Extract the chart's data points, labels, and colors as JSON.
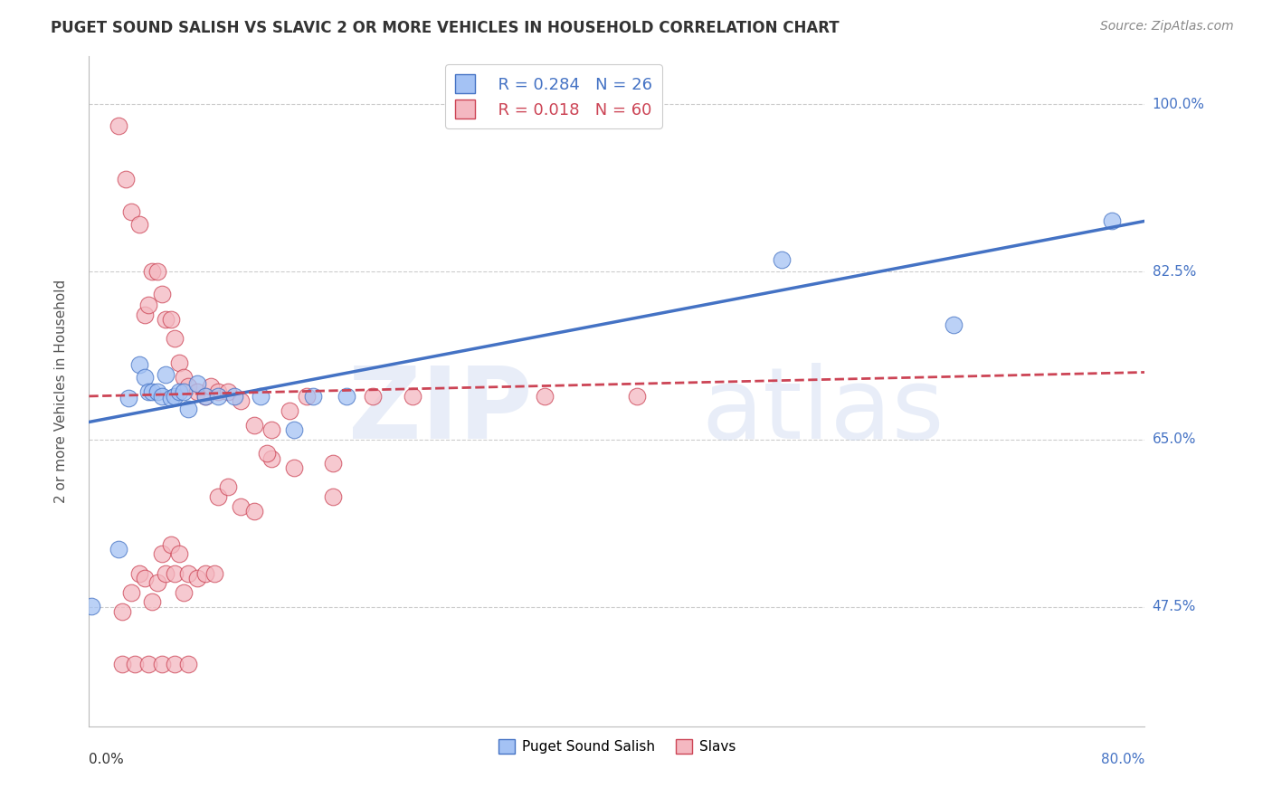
{
  "title": "PUGET SOUND SALISH VS SLAVIC 2 OR MORE VEHICLES IN HOUSEHOLD CORRELATION CHART",
  "source": "Source: ZipAtlas.com",
  "ylabel": "2 or more Vehicles in Household",
  "ytick_labels": [
    "47.5%",
    "65.0%",
    "82.5%",
    "100.0%"
  ],
  "ytick_values": [
    0.475,
    0.65,
    0.825,
    1.0
  ],
  "xlim": [
    0.0,
    0.8
  ],
  "ylim": [
    0.35,
    1.05
  ],
  "legend1_r": "R = 0.284",
  "legend1_n": "N = 26",
  "legend2_r": "R = 0.018",
  "legend2_n": "N = 60",
  "color_blue": "#a4c2f4",
  "color_pink": "#f4b8c1",
  "trendline_blue": "#4472c4",
  "trendline_pink": "#cc4455",
  "legend_label1": "Puget Sound Salish",
  "legend_label2": "Slavs",
  "blue_x": [
    0.002,
    0.022,
    0.03,
    0.038,
    0.042,
    0.045,
    0.048,
    0.052,
    0.055,
    0.058,
    0.062,
    0.065,
    0.068,
    0.072,
    0.075,
    0.082,
    0.088,
    0.098,
    0.11,
    0.13,
    0.155,
    0.17,
    0.195,
    0.525,
    0.655,
    0.775
  ],
  "blue_y": [
    0.476,
    0.535,
    0.693,
    0.728,
    0.715,
    0.7,
    0.7,
    0.7,
    0.695,
    0.718,
    0.693,
    0.695,
    0.7,
    0.7,
    0.682,
    0.708,
    0.695,
    0.695,
    0.695,
    0.695,
    0.66,
    0.695,
    0.695,
    0.838,
    0.77,
    0.878
  ],
  "pink_x": [
    0.022,
    0.028,
    0.032,
    0.038,
    0.042,
    0.045,
    0.048,
    0.052,
    0.055,
    0.058,
    0.062,
    0.065,
    0.068,
    0.072,
    0.075,
    0.082,
    0.088,
    0.092,
    0.098,
    0.105,
    0.115,
    0.125,
    0.138,
    0.152,
    0.165,
    0.185,
    0.025,
    0.032,
    0.038,
    0.042,
    0.048,
    0.052,
    0.055,
    0.058,
    0.062,
    0.065,
    0.068,
    0.072,
    0.075,
    0.082,
    0.088,
    0.098,
    0.105,
    0.115,
    0.125,
    0.138,
    0.215,
    0.245,
    0.185,
    0.345,
    0.415,
    0.135,
    0.155,
    0.095,
    0.025,
    0.035,
    0.045,
    0.055,
    0.065,
    0.075
  ],
  "pink_y": [
    0.978,
    0.922,
    0.888,
    0.875,
    0.78,
    0.79,
    0.825,
    0.825,
    0.802,
    0.775,
    0.775,
    0.755,
    0.73,
    0.715,
    0.705,
    0.7,
    0.695,
    0.705,
    0.7,
    0.7,
    0.69,
    0.665,
    0.66,
    0.68,
    0.695,
    0.625,
    0.47,
    0.49,
    0.51,
    0.505,
    0.48,
    0.5,
    0.53,
    0.51,
    0.54,
    0.51,
    0.53,
    0.49,
    0.51,
    0.505,
    0.51,
    0.59,
    0.6,
    0.58,
    0.575,
    0.63,
    0.695,
    0.695,
    0.59,
    0.695,
    0.695,
    0.635,
    0.62,
    0.51,
    0.415,
    0.415,
    0.415,
    0.415,
    0.415,
    0.415
  ]
}
